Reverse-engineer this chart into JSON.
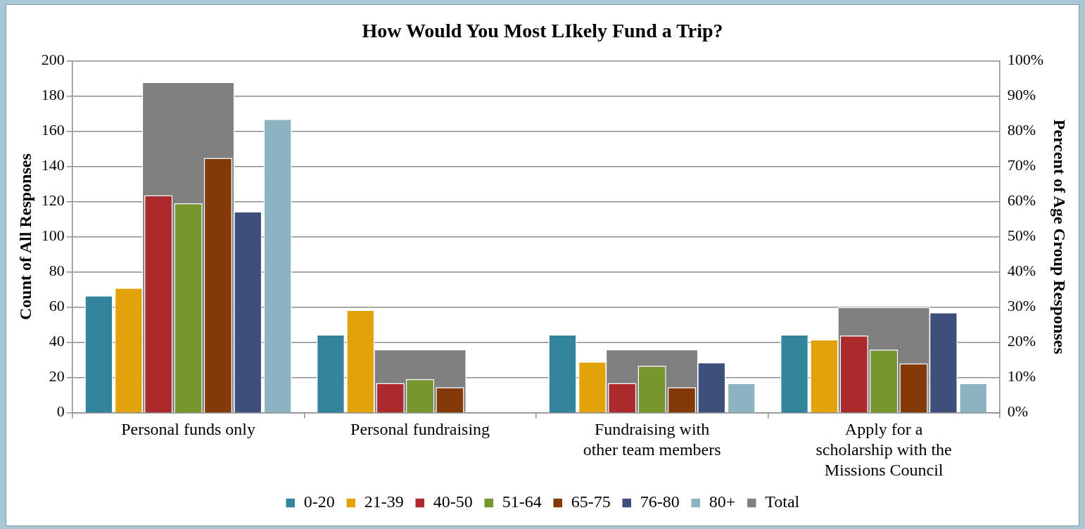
{
  "chart_data": {
    "type": "bar",
    "title": "How Would You Most LIkely Fund a Trip?",
    "ylabel": "Count of All Responses",
    "y2label": "Percent of Age Group Responses",
    "categories": [
      [
        "Personal funds only"
      ],
      [
        "Personal fundraising"
      ],
      [
        "Fundraising with",
        "other team members"
      ],
      [
        "Apply for a",
        "scholarship with the",
        "Missions Council"
      ]
    ],
    "series": [
      {
        "name": "Total",
        "color": "#808080",
        "axis": "y",
        "values": [
          188,
          36,
          36,
          60
        ]
      },
      {
        "name": "0-20",
        "color": "#31849b",
        "axis": "y2",
        "values": [
          33.3,
          22.2,
          22.2,
          22.2
        ]
      },
      {
        "name": "21-39",
        "color": "#e2a30a",
        "axis": "y2",
        "values": [
          35.5,
          29.2,
          14.5,
          20.8
        ]
      },
      {
        "name": "40-50",
        "color": "#ab2a2d",
        "axis": "y2",
        "values": [
          61.8,
          8.4,
          8.4,
          21.9
        ]
      },
      {
        "name": "51-64",
        "color": "#77962e",
        "axis": "y2",
        "values": [
          59.5,
          9.5,
          13.3,
          17.9
        ]
      },
      {
        "name": "65-75",
        "color": "#833a08",
        "axis": "y2",
        "values": [
          72.4,
          7.2,
          7.2,
          14.0
        ]
      },
      {
        "name": "76-80",
        "color": "#3d4f7a",
        "axis": "y2",
        "values": [
          57.2,
          0,
          14.3,
          28.5
        ]
      },
      {
        "name": "80+",
        "color": "#8db3c3",
        "axis": "y2",
        "values": [
          83.5,
          0,
          8.4,
          8.4
        ]
      }
    ],
    "ylim": [
      0,
      200
    ],
    "yticks": [
      0,
      20,
      40,
      60,
      80,
      100,
      120,
      140,
      160,
      180,
      200
    ],
    "y2lim": [
      0,
      100
    ],
    "y2ticks": [
      {
        "value": 0,
        "label": "0%"
      },
      {
        "value": 10,
        "label": "10%"
      },
      {
        "value": 20,
        "label": "20%"
      },
      {
        "value": 30,
        "label": "30%"
      },
      {
        "value": 40,
        "label": "40%"
      },
      {
        "value": 50,
        "label": "50%"
      },
      {
        "value": 60,
        "label": "60%"
      },
      {
        "value": 70,
        "label": "70%"
      },
      {
        "value": 80,
        "label": "80%"
      },
      {
        "value": 90,
        "label": "90%"
      },
      {
        "value": 100,
        "label": "100%"
      }
    ],
    "grid": "y",
    "legend": "bottom"
  }
}
